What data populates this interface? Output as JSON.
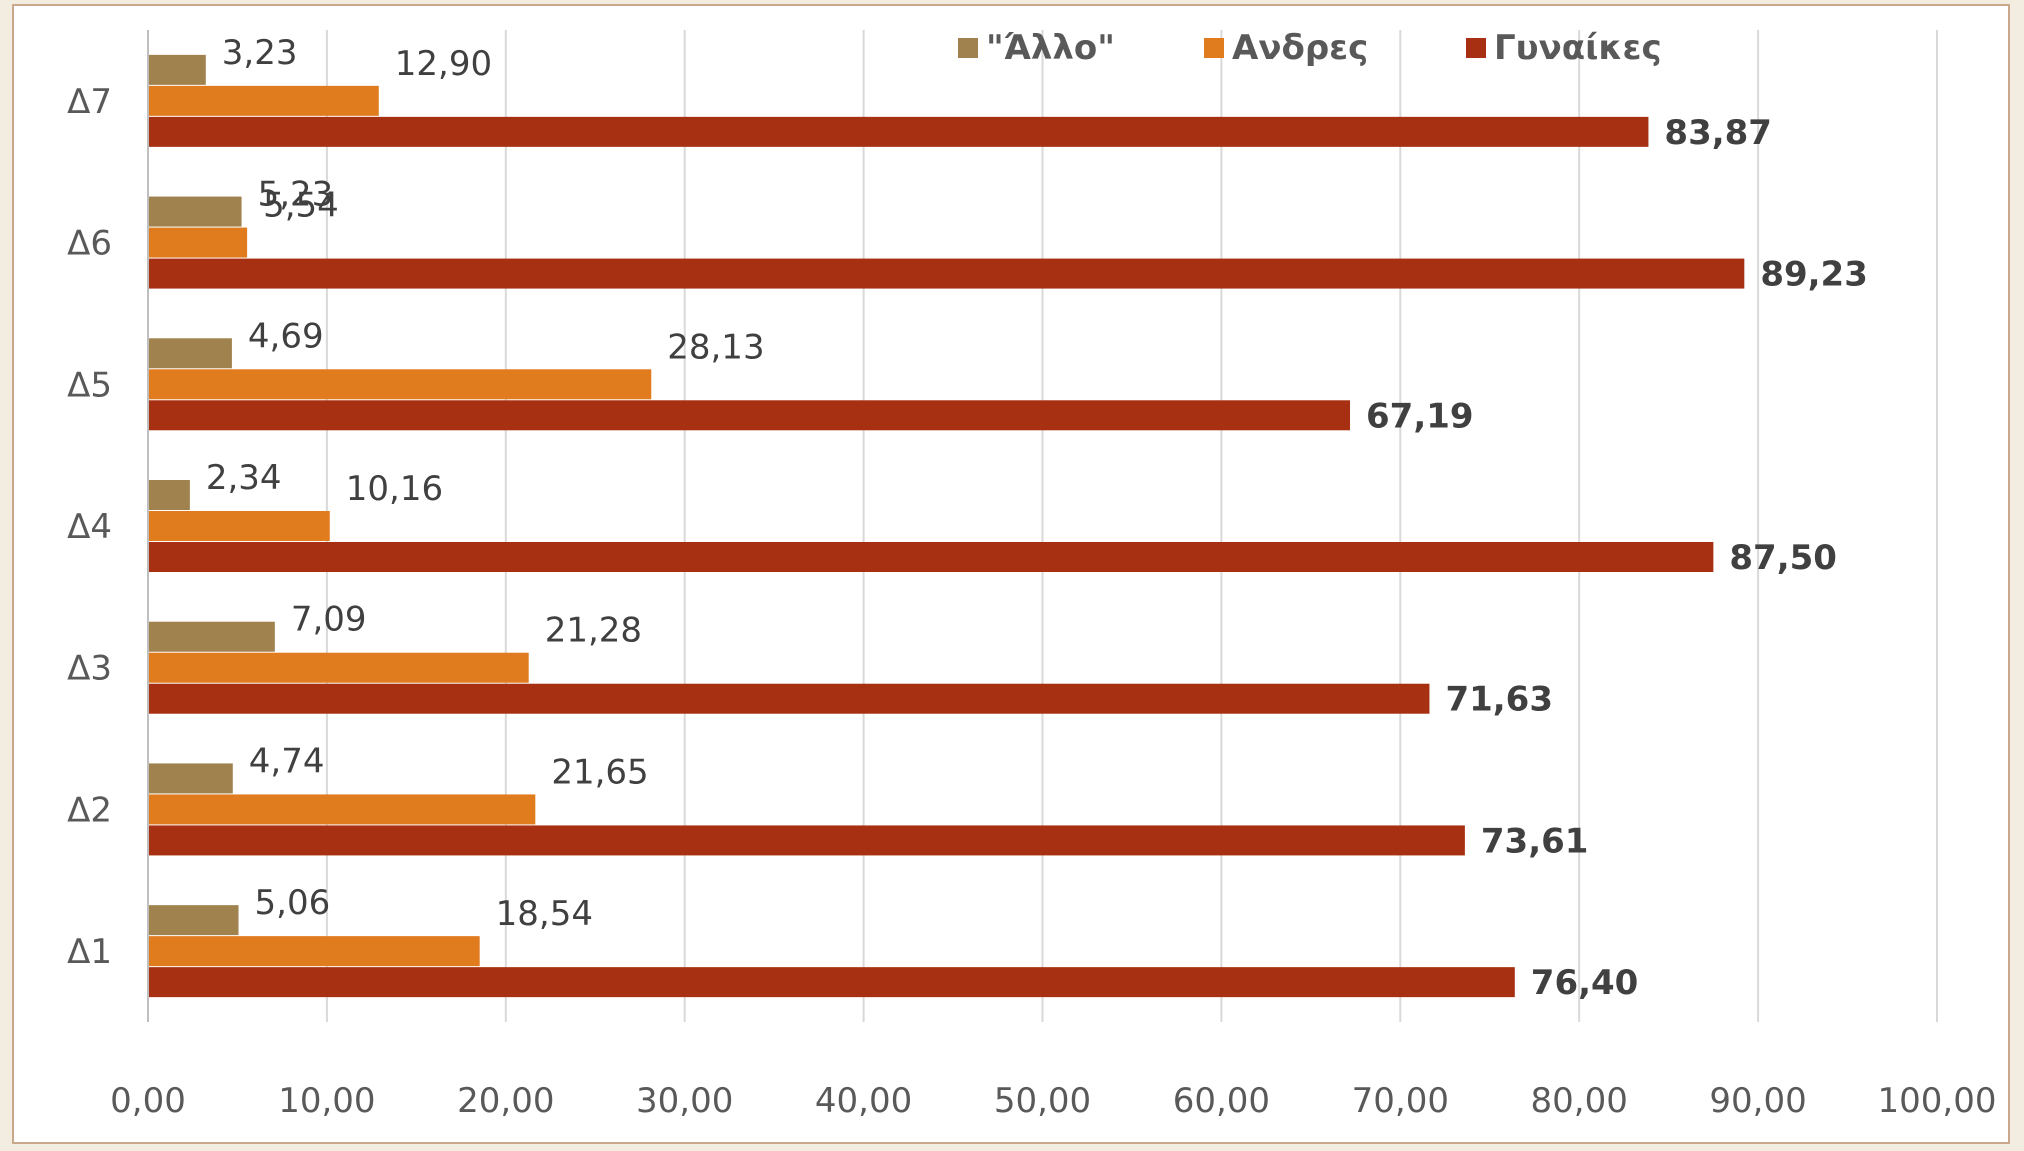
{
  "chart_data": {
    "type": "bar",
    "orientation": "horizontal",
    "categories": [
      "Δ1",
      "Δ2",
      "Δ3",
      "Δ4",
      "Δ5",
      "Δ6",
      "Δ7"
    ],
    "series": [
      {
        "name": "\"Άλλο\"",
        "color": "#a0824f",
        "values": [
          5.06,
          4.74,
          7.09,
          2.34,
          4.69,
          5.23,
          3.23
        ],
        "labels": [
          "5,06",
          "4,74",
          "7,09",
          "2,34",
          "4,69",
          "5,23",
          "3,23"
        ]
      },
      {
        "name": "Ανδρες",
        "color": "#e07b1e",
        "values": [
          18.54,
          21.65,
          21.28,
          10.16,
          28.13,
          5.54,
          12.9
        ],
        "labels": [
          "18,54",
          "21,65",
          "21,28",
          "10,16",
          "28,13",
          "5,54",
          "12,90"
        ]
      },
      {
        "name": "Γυναίκες",
        "color": "#a83012",
        "values": [
          76.4,
          73.61,
          71.63,
          87.5,
          67.19,
          89.23,
          83.87
        ],
        "labels": [
          "76,40",
          "73,61",
          "71,63",
          "87,50",
          "67,19",
          "89,23",
          "83,87"
        ]
      }
    ],
    "xlim": [
      0,
      100
    ],
    "x_ticks": [
      "0,00",
      "10,00",
      "20,00",
      "30,00",
      "40,00",
      "50,00",
      "60,00",
      "70,00",
      "80,00",
      "90,00",
      "100,00"
    ],
    "grid": true,
    "legend_position": "top-right",
    "title": "",
    "xlabel": "",
    "ylabel": ""
  }
}
